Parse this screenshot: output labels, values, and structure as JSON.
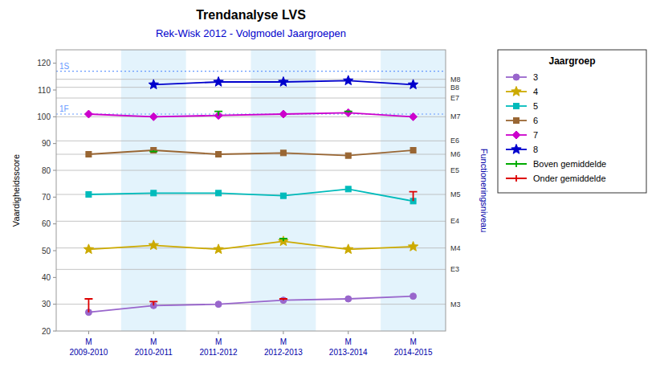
{
  "chart_data": {
    "type": "line",
    "title": "Trendanalyse LVS",
    "subtitle": "Rek-Wisk 2012 - Volgmodel Jaargroepen",
    "categories": [
      "M\n2009-2010",
      "M\n2010-2011",
      "M\n2011-2012",
      "M\n2012-2013",
      "M\n2013-2014",
      "M\n2014-2015"
    ],
    "ylabel": "Vaardigheidsscore",
    "y2label": "Functioneringsniveau",
    "ylim": [
      20,
      125
    ],
    "yticks": [
      20,
      30,
      40,
      50,
      60,
      70,
      80,
      90,
      100,
      110,
      120
    ],
    "y2lim": [
      20,
      125
    ],
    "y2ticks": [
      {
        "value": 30,
        "label": "M3"
      },
      {
        "value": 43,
        "label": "E3"
      },
      {
        "value": 51,
        "label": "M4"
      },
      {
        "value": 61,
        "label": "E4"
      },
      {
        "value": 71,
        "label": "M5"
      },
      {
        "value": 80,
        "label": "E5"
      },
      {
        "value": 86,
        "label": "M6"
      },
      {
        "value": 91,
        "label": "E6"
      },
      {
        "value": 100,
        "label": "M7"
      },
      {
        "value": 107,
        "label": "E7"
      },
      {
        "value": 111,
        "label": "B8"
      },
      {
        "value": 114,
        "label": "M8"
      }
    ],
    "annotations": [
      {
        "label": "1S",
        "value": 117
      },
      {
        "label": "1F",
        "value": 101
      }
    ],
    "legend": "right",
    "legend_title": "Jaargroep",
    "boven": {
      "name": "Boven gemiddelde",
      "color": "#00AA00"
    },
    "onder": {
      "name": "Onder gemiddelde",
      "color": "#DD0000"
    },
    "series": [
      {
        "name": "3",
        "color": "#9966CC",
        "marker": "circle",
        "values": [
          27,
          29.5,
          30,
          31.5,
          32,
          33
        ],
        "boven": [
          null,
          null,
          null,
          null,
          null,
          null
        ],
        "onder": [
          32,
          31,
          null,
          32,
          null,
          null
        ]
      },
      {
        "name": "4",
        "color": "#CCAA00",
        "marker": "star",
        "values": [
          50.5,
          52,
          50.5,
          53.5,
          50.5,
          51.5
        ],
        "boven": [
          null,
          null,
          null,
          54.5,
          null,
          null
        ],
        "onder": [
          null,
          null,
          null,
          null,
          null,
          null
        ]
      },
      {
        "name": "5",
        "color": "#00BBBB",
        "marker": "square",
        "values": [
          71,
          71.5,
          71.5,
          70.5,
          73,
          68.5
        ],
        "boven": [
          null,
          null,
          null,
          null,
          null,
          null
        ],
        "onder": [
          null,
          null,
          null,
          null,
          null,
          72
        ]
      },
      {
        "name": "6",
        "color": "#996633",
        "marker": "square",
        "values": [
          86,
          87.5,
          86,
          86.5,
          85.5,
          87.5
        ],
        "boven": [
          null,
          87,
          null,
          null,
          null,
          null
        ],
        "onder": [
          null,
          null,
          null,
          null,
          null,
          null
        ]
      },
      {
        "name": "7",
        "color": "#CC00CC",
        "marker": "diamond",
        "values": [
          101,
          100,
          100.5,
          101,
          101.5,
          100
        ],
        "boven": [
          null,
          null,
          102,
          null,
          102,
          null
        ],
        "onder": [
          null,
          null,
          null,
          null,
          null,
          null
        ]
      },
      {
        "name": "8",
        "color": "#0000CC",
        "marker": "star",
        "values": [
          null,
          112,
          113,
          113,
          113.5,
          112
        ],
        "boven": [
          null,
          null,
          null,
          null,
          null,
          null
        ],
        "onder": [
          null,
          null,
          null,
          null,
          null,
          null
        ]
      }
    ]
  }
}
